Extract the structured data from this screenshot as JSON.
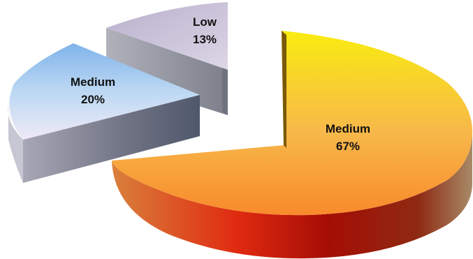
{
  "chart_data": {
    "type": "pie",
    "three_d": true,
    "exploded": true,
    "slices": [
      {
        "label": "Medium",
        "percent_text": "67%",
        "value": 67,
        "color_top": "#f7b84a",
        "color_side": "#b81a0c"
      },
      {
        "label": "Medium",
        "percent_text": "20%",
        "value": 20,
        "color_top": "#b9d6f2",
        "color_side": "#5c6478"
      },
      {
        "label": "Low",
        "percent_text": "13%",
        "value": 13,
        "color_top": "#c8c0d8",
        "color_side": "#8d8f99"
      }
    ]
  }
}
